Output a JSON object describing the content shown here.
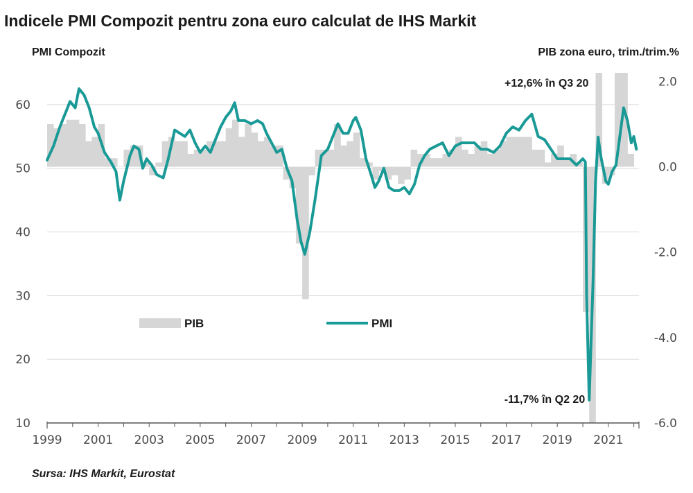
{
  "chart_data": {
    "type": "bar+line",
    "title": "Indicele PMI Compozit pentru zona euro calculat de IHS Markit",
    "ylabel_left": "PMI Compozit",
    "ylabel_right": "PIB zona euro, trim./trim.%",
    "ylim_left": [
      10,
      65
    ],
    "ylim_right": [
      -6.0,
      2.2
    ],
    "yticks_left": [
      "10",
      "20",
      "30",
      "40",
      "50",
      "60"
    ],
    "yticks_right": [
      "-6.0",
      "-4.0",
      "-2.0",
      "0.0",
      "2.0"
    ],
    "xticks": [
      "1999",
      "2001",
      "2003",
      "2005",
      "2007",
      "2009",
      "2011",
      "2013",
      "2015",
      "2017",
      "2019",
      "2021"
    ],
    "xlim": [
      1999.0,
      2022.2
    ],
    "grid": "horizontal",
    "legend_placement": "center-left",
    "colors": {
      "pib": "#d6d6d6",
      "pmi": "#1a9a96",
      "grid": "#d9d9d9",
      "axis": "#555555"
    },
    "series": [
      {
        "name": "PIB",
        "kind": "bar",
        "axis": "right",
        "quarters": [
          [
            1999.0,
            1.0
          ],
          [
            1999.25,
            0.9
          ],
          [
            1999.5,
            1.0
          ],
          [
            1999.75,
            1.1
          ],
          [
            2000.0,
            1.1
          ],
          [
            2000.25,
            1.0
          ],
          [
            2000.5,
            0.6
          ],
          [
            2000.75,
            0.7
          ],
          [
            2001.0,
            1.0
          ],
          [
            2001.25,
            0.2
          ],
          [
            2001.5,
            0.2
          ],
          [
            2001.75,
            0.0
          ],
          [
            2002.0,
            0.4
          ],
          [
            2002.25,
            0.5
          ],
          [
            2002.5,
            0.5
          ],
          [
            2002.75,
            0.1
          ],
          [
            2003.0,
            -0.2
          ],
          [
            2003.25,
            0.1
          ],
          [
            2003.5,
            0.6
          ],
          [
            2003.75,
            0.7
          ],
          [
            2004.0,
            0.6
          ],
          [
            2004.25,
            0.6
          ],
          [
            2004.5,
            0.3
          ],
          [
            2004.75,
            0.4
          ],
          [
            2005.0,
            0.4
          ],
          [
            2005.25,
            0.6
          ],
          [
            2005.5,
            0.6
          ],
          [
            2005.75,
            0.6
          ],
          [
            2006.0,
            0.9
          ],
          [
            2006.25,
            1.1
          ],
          [
            2006.5,
            0.7
          ],
          [
            2006.75,
            1.0
          ],
          [
            2007.0,
            0.8
          ],
          [
            2007.25,
            0.6
          ],
          [
            2007.5,
            0.7
          ],
          [
            2007.75,
            0.5
          ],
          [
            2008.0,
            0.5
          ],
          [
            2008.25,
            -0.3
          ],
          [
            2008.5,
            -0.5
          ],
          [
            2008.75,
            -1.8
          ],
          [
            2009.0,
            -3.1
          ],
          [
            2009.25,
            -0.2
          ],
          [
            2009.5,
            0.4
          ],
          [
            2009.75,
            0.4
          ],
          [
            2010.0,
            0.4
          ],
          [
            2010.25,
            1.0
          ],
          [
            2010.5,
            0.5
          ],
          [
            2010.75,
            0.6
          ],
          [
            2011.0,
            0.8
          ],
          [
            2011.25,
            0.2
          ],
          [
            2011.5,
            0.1
          ],
          [
            2011.75,
            -0.3
          ],
          [
            2012.0,
            -0.1
          ],
          [
            2012.25,
            -0.3
          ],
          [
            2012.5,
            -0.2
          ],
          [
            2012.75,
            -0.4
          ],
          [
            2013.0,
            -0.3
          ],
          [
            2013.25,
            0.4
          ],
          [
            2013.5,
            0.3
          ],
          [
            2013.75,
            0.3
          ],
          [
            2014.0,
            0.2
          ],
          [
            2014.25,
            0.2
          ],
          [
            2014.5,
            0.3
          ],
          [
            2014.75,
            0.4
          ],
          [
            2015.0,
            0.7
          ],
          [
            2015.25,
            0.4
          ],
          [
            2015.5,
            0.3
          ],
          [
            2015.75,
            0.5
          ],
          [
            2016.0,
            0.6
          ],
          [
            2016.25,
            0.3
          ],
          [
            2016.5,
            0.4
          ],
          [
            2016.75,
            0.6
          ],
          [
            2017.0,
            0.7
          ],
          [
            2017.25,
            0.7
          ],
          [
            2017.5,
            0.7
          ],
          [
            2017.75,
            0.7
          ],
          [
            2018.0,
            0.4
          ],
          [
            2018.25,
            0.4
          ],
          [
            2018.5,
            0.1
          ],
          [
            2018.75,
            0.3
          ],
          [
            2019.0,
            0.5
          ],
          [
            2019.25,
            0.2
          ],
          [
            2019.5,
            0.3
          ],
          [
            2019.75,
            0.1
          ],
          [
            2020.0,
            -3.4
          ],
          [
            2020.25,
            -11.7
          ],
          [
            2020.5,
            12.6
          ],
          [
            2020.75,
            -0.4
          ],
          [
            2021.0,
            -0.2
          ],
          [
            2021.25,
            2.2
          ],
          [
            2021.5,
            2.3
          ],
          [
            2021.75,
            0.3
          ]
        ]
      },
      {
        "name": "PMI",
        "kind": "line",
        "axis": "left",
        "points": [
          [
            1999.0,
            51.3
          ],
          [
            1999.25,
            53.5
          ],
          [
            1999.5,
            56.5
          ],
          [
            1999.75,
            59.0
          ],
          [
            1999.9,
            60.5
          ],
          [
            2000.1,
            59.5
          ],
          [
            2000.25,
            62.5
          ],
          [
            2000.45,
            61.5
          ],
          [
            2000.65,
            59.5
          ],
          [
            2000.85,
            56.5
          ],
          [
            2001.0,
            55.5
          ],
          [
            2001.25,
            52.5
          ],
          [
            2001.5,
            51.0
          ],
          [
            2001.7,
            49.5
          ],
          [
            2001.85,
            45.0
          ],
          [
            2002.0,
            48.0
          ],
          [
            2002.25,
            52.0
          ],
          [
            2002.4,
            53.5
          ],
          [
            2002.6,
            53.0
          ],
          [
            2002.75,
            50.0
          ],
          [
            2002.9,
            51.5
          ],
          [
            2003.1,
            50.5
          ],
          [
            2003.3,
            49.0
          ],
          [
            2003.55,
            48.5
          ],
          [
            2003.75,
            51.5
          ],
          [
            2004.0,
            56.0
          ],
          [
            2004.2,
            55.5
          ],
          [
            2004.4,
            55.0
          ],
          [
            2004.6,
            56.0
          ],
          [
            2004.8,
            54.0
          ],
          [
            2005.0,
            52.5
          ],
          [
            2005.2,
            53.5
          ],
          [
            2005.4,
            52.5
          ],
          [
            2005.6,
            54.5
          ],
          [
            2005.8,
            56.5
          ],
          [
            2006.0,
            58.0
          ],
          [
            2006.2,
            59.0
          ],
          [
            2006.35,
            60.3
          ],
          [
            2006.5,
            57.5
          ],
          [
            2006.75,
            57.5
          ],
          [
            2007.0,
            57.0
          ],
          [
            2007.25,
            57.5
          ],
          [
            2007.45,
            57.0
          ],
          [
            2007.6,
            55.5
          ],
          [
            2007.8,
            54.0
          ],
          [
            2008.0,
            52.5
          ],
          [
            2008.2,
            53.0
          ],
          [
            2008.4,
            50.0
          ],
          [
            2008.6,
            48.0
          ],
          [
            2008.8,
            42.0
          ],
          [
            2008.95,
            38.5
          ],
          [
            2009.1,
            36.5
          ],
          [
            2009.3,
            40.0
          ],
          [
            2009.5,
            45.0
          ],
          [
            2009.75,
            52.0
          ],
          [
            2010.0,
            53.0
          ],
          [
            2010.25,
            55.5
          ],
          [
            2010.4,
            57.0
          ],
          [
            2010.6,
            55.5
          ],
          [
            2010.8,
            55.5
          ],
          [
            2011.0,
            57.5
          ],
          [
            2011.1,
            58.0
          ],
          [
            2011.3,
            56.0
          ],
          [
            2011.5,
            51.5
          ],
          [
            2011.7,
            49.0
          ],
          [
            2011.85,
            47.0
          ],
          [
            2012.0,
            48.0
          ],
          [
            2012.2,
            50.0
          ],
          [
            2012.4,
            47.0
          ],
          [
            2012.6,
            46.5
          ],
          [
            2012.8,
            46.5
          ],
          [
            2013.0,
            47.0
          ],
          [
            2013.2,
            46.0
          ],
          [
            2013.4,
            47.5
          ],
          [
            2013.6,
            50.5
          ],
          [
            2013.8,
            52.0
          ],
          [
            2014.0,
            53.0
          ],
          [
            2014.25,
            53.5
          ],
          [
            2014.5,
            54.0
          ],
          [
            2014.75,
            52.0
          ],
          [
            2015.0,
            53.5
          ],
          [
            2015.25,
            54.0
          ],
          [
            2015.5,
            54.0
          ],
          [
            2015.75,
            54.0
          ],
          [
            2016.0,
            53.0
          ],
          [
            2016.25,
            53.0
          ],
          [
            2016.5,
            52.5
          ],
          [
            2016.75,
            53.5
          ],
          [
            2017.0,
            55.5
          ],
          [
            2017.25,
            56.5
          ],
          [
            2017.5,
            56.0
          ],
          [
            2017.75,
            57.5
          ],
          [
            2018.0,
            58.5
          ],
          [
            2018.25,
            55.0
          ],
          [
            2018.5,
            54.5
          ],
          [
            2018.75,
            53.0
          ],
          [
            2019.0,
            51.5
          ],
          [
            2019.25,
            51.5
          ],
          [
            2019.5,
            51.5
          ],
          [
            2019.75,
            50.5
          ],
          [
            2020.0,
            51.5
          ],
          [
            2020.1,
            51.0
          ],
          [
            2020.15,
            30.0
          ],
          [
            2020.25,
            13.6
          ],
          [
            2020.4,
            32.0
          ],
          [
            2020.5,
            48.0
          ],
          [
            2020.6,
            54.9
          ],
          [
            2020.7,
            52.0
          ],
          [
            2020.8,
            50.0
          ],
          [
            2020.9,
            48.0
          ],
          [
            2021.0,
            47.5
          ],
          [
            2021.15,
            49.5
          ],
          [
            2021.3,
            50.5
          ],
          [
            2021.45,
            55.0
          ],
          [
            2021.6,
            59.5
          ],
          [
            2021.75,
            57.5
          ],
          [
            2021.9,
            54.0
          ],
          [
            2022.0,
            55.0
          ],
          [
            2022.1,
            53.0
          ]
        ]
      }
    ],
    "annotations": [
      {
        "text": "+12,6% în Q3 20",
        "x": 2020.5,
        "y_right": 2.2
      },
      {
        "text": "-11,7% în Q2 20",
        "x": 2020.25,
        "y_right": -5.4
      }
    ],
    "legend": [
      {
        "label": "PIB",
        "kind": "bar"
      },
      {
        "label": "PMI",
        "kind": "line"
      }
    ],
    "source": "Sursa: IHS Markit, Eurostat"
  }
}
